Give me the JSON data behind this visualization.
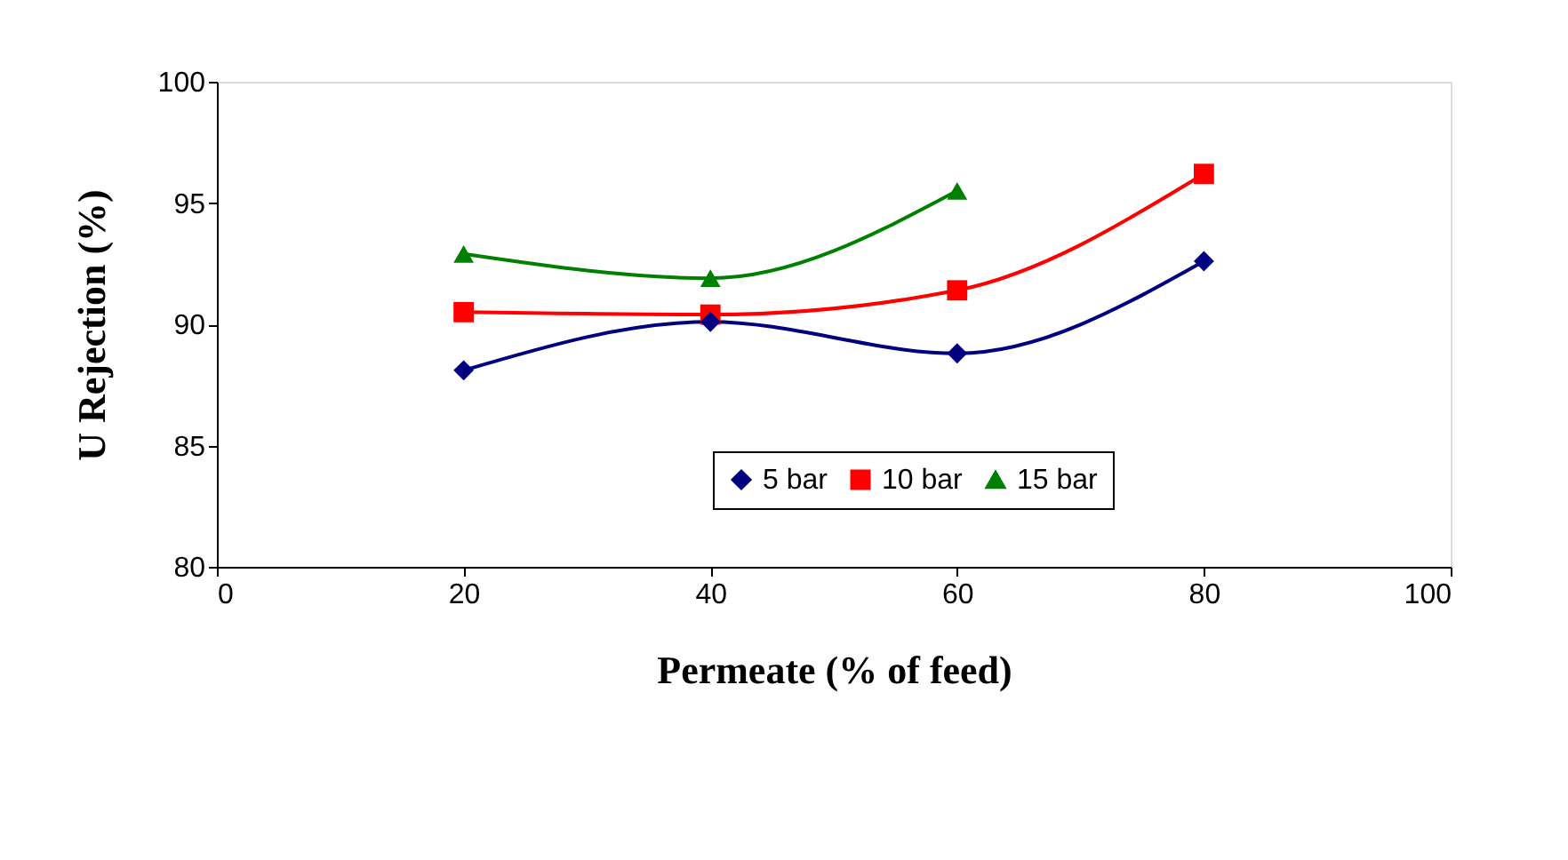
{
  "chart_data": {
    "type": "line",
    "xlabel": "Permeate (% of feed)",
    "ylabel": "U Rejection (%)",
    "x": [
      20,
      40,
      60,
      80
    ],
    "series": [
      {
        "name": "5 bar",
        "color": "#000080",
        "marker": "diamond",
        "values": [
          88.1,
          90.1,
          88.8,
          92.6
        ]
      },
      {
        "name": "10 bar",
        "color": "#ff0000",
        "marker": "square",
        "values": [
          90.5,
          90.4,
          91.4,
          96.2
        ]
      },
      {
        "name": "15 bar",
        "color": "#008000",
        "marker": "triangle",
        "values": [
          92.9,
          91.9,
          95.5,
          null
        ]
      }
    ],
    "xlim": [
      0,
      100
    ],
    "xticks": [
      0,
      20,
      40,
      60,
      80,
      100
    ],
    "ylim": [
      80,
      100
    ],
    "yticks": [
      80,
      85,
      90,
      95,
      100
    ],
    "grid": false,
    "legend": "bottom right",
    "line_style": "solid"
  }
}
